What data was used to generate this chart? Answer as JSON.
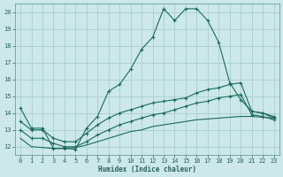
{
  "xlabel": "Humidex (Indice chaleur)",
  "background_color": "#cce8e8",
  "line_color": "#1a6b5a",
  "grid_color": "#aacece",
  "xlim": [
    -0.5,
    23.5
  ],
  "ylim": [
    11.5,
    20.5
  ],
  "yticks": [
    12,
    13,
    14,
    15,
    16,
    17,
    18,
    19,
    20
  ],
  "xticks": [
    0,
    1,
    2,
    3,
    4,
    5,
    6,
    7,
    8,
    9,
    10,
    11,
    12,
    13,
    14,
    15,
    16,
    17,
    18,
    19,
    20,
    21,
    22,
    23
  ],
  "line1_x": [
    0,
    1,
    2,
    3,
    4,
    5,
    6,
    7,
    8,
    9,
    10,
    11,
    12,
    13,
    14,
    15,
    16,
    17,
    18,
    19,
    20,
    21,
    22,
    23
  ],
  "line1_y": [
    14.3,
    13.1,
    13.1,
    11.9,
    11.9,
    11.85,
    13.1,
    13.8,
    15.3,
    15.7,
    16.6,
    17.8,
    18.5,
    20.2,
    19.5,
    20.2,
    20.2,
    19.5,
    18.2,
    15.8,
    14.8,
    14.1,
    14.0,
    13.7
  ],
  "line2_x": [
    0,
    1,
    2,
    3,
    4,
    5,
    6,
    7,
    8,
    9,
    10,
    11,
    12,
    13,
    14,
    15,
    16,
    17,
    18,
    19,
    20,
    21,
    22,
    23
  ],
  "line2_y": [
    13.5,
    13.0,
    13.0,
    12.5,
    12.3,
    12.3,
    12.8,
    13.3,
    13.7,
    14.0,
    14.2,
    14.4,
    14.6,
    14.7,
    14.8,
    14.9,
    15.2,
    15.4,
    15.5,
    15.7,
    15.8,
    14.1,
    14.0,
    13.8
  ],
  "line3_x": [
    0,
    1,
    2,
    3,
    4,
    5,
    6,
    7,
    8,
    9,
    10,
    11,
    12,
    13,
    14,
    15,
    16,
    17,
    18,
    19,
    20,
    21,
    22,
    23
  ],
  "line3_y": [
    13.0,
    12.5,
    12.5,
    12.2,
    12.0,
    12.0,
    12.3,
    12.7,
    13.0,
    13.3,
    13.5,
    13.7,
    13.9,
    14.0,
    14.2,
    14.4,
    14.6,
    14.7,
    14.9,
    15.0,
    15.1,
    13.9,
    13.8,
    13.6
  ],
  "line4_x": [
    0,
    1,
    2,
    3,
    4,
    5,
    6,
    7,
    8,
    9,
    10,
    11,
    12,
    13,
    14,
    15,
    16,
    17,
    18,
    19,
    20,
    21,
    22,
    23
  ],
  "line4_y": [
    12.5,
    12.0,
    11.95,
    11.9,
    11.9,
    11.95,
    12.1,
    12.3,
    12.5,
    12.7,
    12.9,
    13.0,
    13.2,
    13.3,
    13.4,
    13.5,
    13.6,
    13.65,
    13.7,
    13.75,
    13.8,
    13.8,
    13.75,
    13.7
  ]
}
